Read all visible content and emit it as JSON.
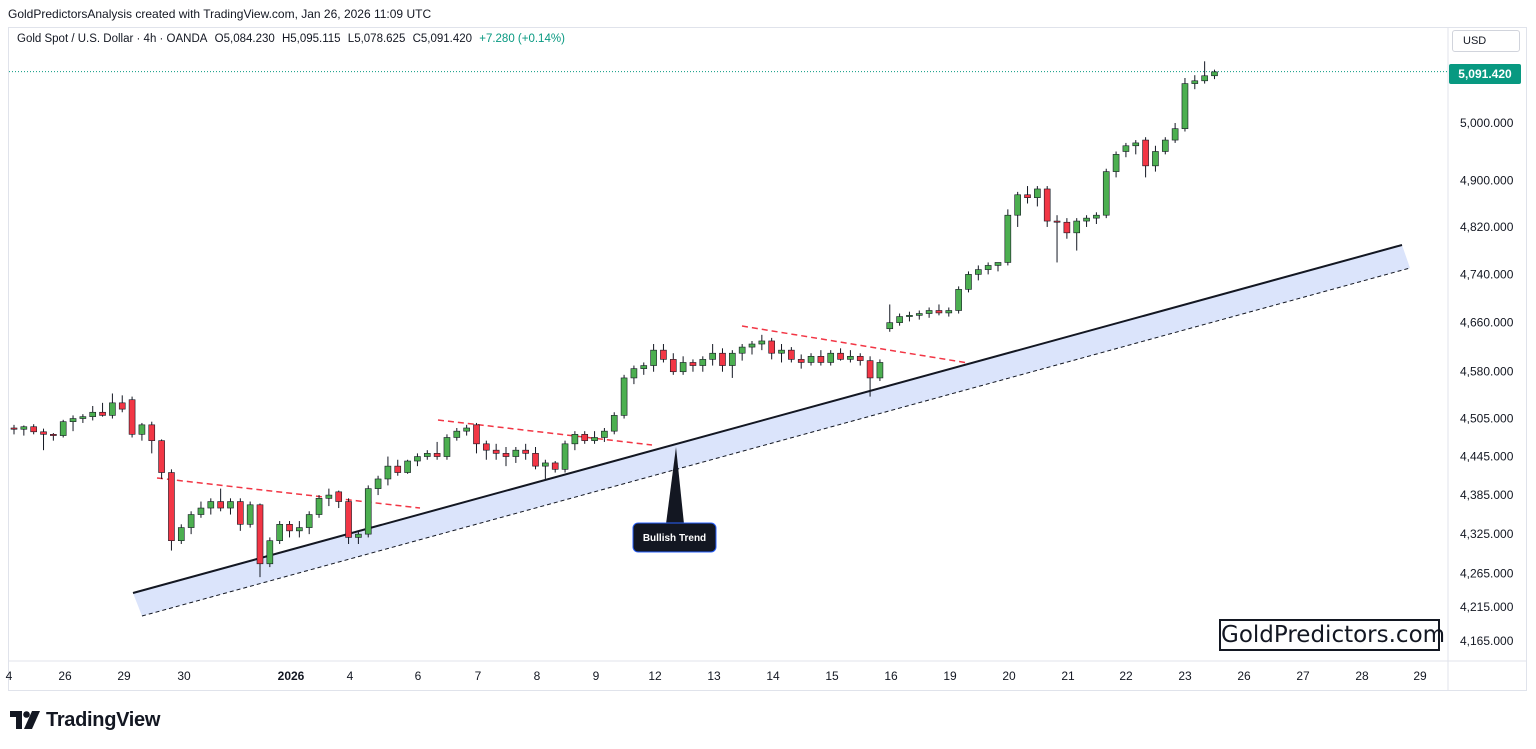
{
  "header": {
    "caption": "GoldPredictorsAnalysis created with TradingView.com, Jan 26, 2026 11:09 UTC"
  },
  "legend": {
    "symbol": "Gold Spot / U.S. Dollar · 4h · OANDA",
    "open": "O5,084.230",
    "high": "H5,095.115",
    "low": "L5,078.625",
    "close": "C5,091.420",
    "change": "+7.280 (+0.14%)"
  },
  "currency": "USD",
  "last_price_label": "5,091.420",
  "watermark": "GoldPredictors.com",
  "footer": {
    "brand": "TradingView"
  },
  "colors": {
    "up": "#089981",
    "up_fill": "#4caf50",
    "down": "#f23645",
    "trendline": "#131722",
    "channel_fill": "#dbe4fb",
    "resistance": "#f23645",
    "last_price": "#089981"
  },
  "chart_data": {
    "type": "candlestick",
    "title": "Gold Spot / U.S. Dollar · 4h · OANDA",
    "y_axis": {
      "ticks": [
        5000,
        4900,
        4820,
        4740,
        4660,
        4580,
        4505,
        4445,
        4385,
        4325,
        4265,
        4215,
        4165
      ],
      "tick_labels": [
        "5,000.000",
        "4,900.000",
        "4,820.000",
        "4,740.000",
        "4,660.000",
        "4,580.000",
        "4,505.000",
        "4,445.000",
        "4,385.000",
        "4,325.000",
        "4,265.000",
        "4,215.000",
        "4,165.000"
      ],
      "scale": "log"
    },
    "x_axis": {
      "tick_labels": [
        "4",
        "26",
        "29",
        "30",
        "2026",
        "4",
        "6",
        "7",
        "8",
        "9",
        "12",
        "13",
        "14",
        "15",
        "16",
        "19",
        "20",
        "21",
        "22",
        "23",
        "26",
        "27",
        "28",
        "29"
      ]
    },
    "last_price": 5091.42,
    "candles": [
      [
        4490,
        4495,
        4480,
        4488
      ],
      [
        4488,
        4494,
        4478,
        4492
      ],
      [
        4492,
        4496,
        4480,
        4484
      ],
      [
        4484,
        4489,
        4455,
        4480
      ],
      [
        4480,
        4482,
        4470,
        4478
      ],
      [
        4478,
        4503,
        4475,
        4500
      ],
      [
        4500,
        4510,
        4485,
        4505
      ],
      [
        4505,
        4512,
        4498,
        4508
      ],
      [
        4508,
        4525,
        4502,
        4515
      ],
      [
        4515,
        4530,
        4508,
        4510
      ],
      [
        4510,
        4545,
        4505,
        4530
      ],
      [
        4530,
        4542,
        4515,
        4520
      ],
      [
        4535,
        4540,
        4475,
        4480
      ],
      [
        4480,
        4498,
        4470,
        4495
      ],
      [
        4495,
        4500,
        4450,
        4470
      ],
      [
        4470,
        4472,
        4410,
        4420
      ],
      [
        4420,
        4425,
        4300,
        4315
      ],
      [
        4315,
        4340,
        4310,
        4335
      ],
      [
        4335,
        4360,
        4325,
        4355
      ],
      [
        4355,
        4375,
        4350,
        4365
      ],
      [
        4365,
        4380,
        4355,
        4375
      ],
      [
        4375,
        4395,
        4360,
        4365
      ],
      [
        4365,
        4380,
        4355,
        4375
      ],
      [
        4375,
        4380,
        4330,
        4340
      ],
      [
        4340,
        4375,
        4335,
        4370
      ],
      [
        4370,
        4372,
        4260,
        4280
      ],
      [
        4280,
        4320,
        4275,
        4315
      ],
      [
        4315,
        4345,
        4310,
        4340
      ],
      [
        4340,
        4345,
        4320,
        4330
      ],
      [
        4330,
        4345,
        4320,
        4335
      ],
      [
        4335,
        4360,
        4325,
        4355
      ],
      [
        4355,
        4385,
        4350,
        4380
      ],
      [
        4380,
        4395,
        4368,
        4385
      ],
      [
        4390,
        4392,
        4365,
        4375
      ],
      [
        4375,
        4380,
        4310,
        4320
      ],
      [
        4320,
        4330,
        4310,
        4325
      ],
      [
        4325,
        4400,
        4320,
        4395
      ],
      [
        4395,
        4415,
        4385,
        4410
      ],
      [
        4410,
        4445,
        4400,
        4430
      ],
      [
        4430,
        4440,
        4415,
        4420
      ],
      [
        4420,
        4440,
        4418,
        4438
      ],
      [
        4438,
        4450,
        4430,
        4445
      ],
      [
        4445,
        4455,
        4440,
        4450
      ],
      [
        4450,
        4468,
        4440,
        4445
      ],
      [
        4445,
        4480,
        4440,
        4475
      ],
      [
        4475,
        4490,
        4470,
        4485
      ],
      [
        4485,
        4495,
        4478,
        4490
      ],
      [
        4495,
        4498,
        4450,
        4465
      ],
      [
        4465,
        4470,
        4440,
        4455
      ],
      [
        4455,
        4465,
        4440,
        4450
      ],
      [
        4450,
        4460,
        4430,
        4445
      ],
      [
        4445,
        4460,
        4435,
        4455
      ],
      [
        4455,
        4465,
        4440,
        4450
      ],
      [
        4450,
        4460,
        4425,
        4430
      ],
      [
        4430,
        4440,
        4410,
        4435
      ],
      [
        4435,
        4438,
        4420,
        4425
      ],
      [
        4425,
        4470,
        4420,
        4465
      ],
      [
        4465,
        4485,
        4455,
        4480
      ],
      [
        4480,
        4485,
        4465,
        4470
      ],
      [
        4470,
        4485,
        4465,
        4475
      ],
      [
        4475,
        4490,
        4468,
        4485
      ],
      [
        4485,
        4515,
        4480,
        4510
      ],
      [
        4510,
        4575,
        4505,
        4570
      ],
      [
        4570,
        4590,
        4560,
        4585
      ],
      [
        4585,
        4595,
        4575,
        4590
      ],
      [
        4590,
        4625,
        4580,
        4615
      ],
      [
        4615,
        4625,
        4595,
        4600
      ],
      [
        4600,
        4610,
        4575,
        4580
      ],
      [
        4580,
        4605,
        4575,
        4595
      ],
      [
        4595,
        4600,
        4580,
        4590
      ],
      [
        4590,
        4605,
        4580,
        4600
      ],
      [
        4600,
        4625,
        4590,
        4610
      ],
      [
        4610,
        4618,
        4580,
        4590
      ],
      [
        4590,
        4615,
        4570,
        4610
      ],
      [
        4610,
        4625,
        4598,
        4620
      ],
      [
        4620,
        4630,
        4608,
        4625
      ],
      [
        4625,
        4640,
        4615,
        4630
      ],
      [
        4630,
        4635,
        4600,
        4610
      ],
      [
        4610,
        4625,
        4595,
        4615
      ],
      [
        4615,
        4620,
        4595,
        4600
      ],
      [
        4600,
        4608,
        4585,
        4595
      ],
      [
        4595,
        4610,
        4590,
        4605
      ],
      [
        4605,
        4615,
        4590,
        4595
      ],
      [
        4595,
        4615,
        4590,
        4610
      ],
      [
        4610,
        4618,
        4598,
        4600
      ],
      [
        4600,
        4615,
        4595,
        4605
      ],
      [
        4605,
        4610,
        4590,
        4598
      ],
      [
        4598,
        4605,
        4540,
        4570
      ],
      [
        4570,
        4600,
        4565,
        4595
      ],
      [
        4650,
        4690,
        4645,
        4660
      ],
      [
        4660,
        4675,
        4655,
        4670
      ],
      [
        4670,
        4678,
        4662,
        4672
      ],
      [
        4672,
        4680,
        4665,
        4675
      ],
      [
        4675,
        4685,
        4668,
        4680
      ],
      [
        4680,
        4690,
        4672,
        4676
      ],
      [
        4676,
        4685,
        4670,
        4680
      ],
      [
        4680,
        4720,
        4675,
        4715
      ],
      [
        4715,
        4745,
        4710,
        4740
      ],
      [
        4740,
        4755,
        4730,
        4748
      ],
      [
        4748,
        4760,
        4740,
        4755
      ],
      [
        4755,
        4760,
        4745,
        4760
      ],
      [
        4760,
        4850,
        4755,
        4840
      ],
      [
        4840,
        4880,
        4820,
        4875
      ],
      [
        4875,
        4890,
        4860,
        4870
      ],
      [
        4870,
        4890,
        4855,
        4885
      ],
      [
        4885,
        4890,
        4820,
        4830
      ],
      [
        4830,
        4840,
        4760,
        4828
      ],
      [
        4828,
        4835,
        4800,
        4810
      ],
      [
        4810,
        4835,
        4780,
        4830
      ],
      [
        4830,
        4840,
        4820,
        4835
      ],
      [
        4835,
        4845,
        4825,
        4840
      ],
      [
        4840,
        4920,
        4835,
        4915
      ],
      [
        4915,
        4950,
        4905,
        4945
      ],
      [
        4950,
        4965,
        4940,
        4960
      ],
      [
        4960,
        4970,
        4945,
        4965
      ],
      [
        4970,
        4975,
        4905,
        4925
      ],
      [
        4925,
        4960,
        4915,
        4950
      ],
      [
        4950,
        4975,
        4945,
        4970
      ],
      [
        4970,
        5000,
        4965,
        4990
      ],
      [
        4990,
        5080,
        4985,
        5070
      ],
      [
        5070,
        5085,
        5060,
        5075
      ],
      [
        5075,
        5110,
        5070,
        5084
      ],
      [
        5084,
        5095,
        5078,
        5091
      ]
    ],
    "lines": [
      {
        "name": "Bullish Trend",
        "type": "trendline"
      }
    ],
    "annotations": [
      "Bullish Trend"
    ]
  },
  "annotation": {
    "label": "Bullish Trend"
  }
}
